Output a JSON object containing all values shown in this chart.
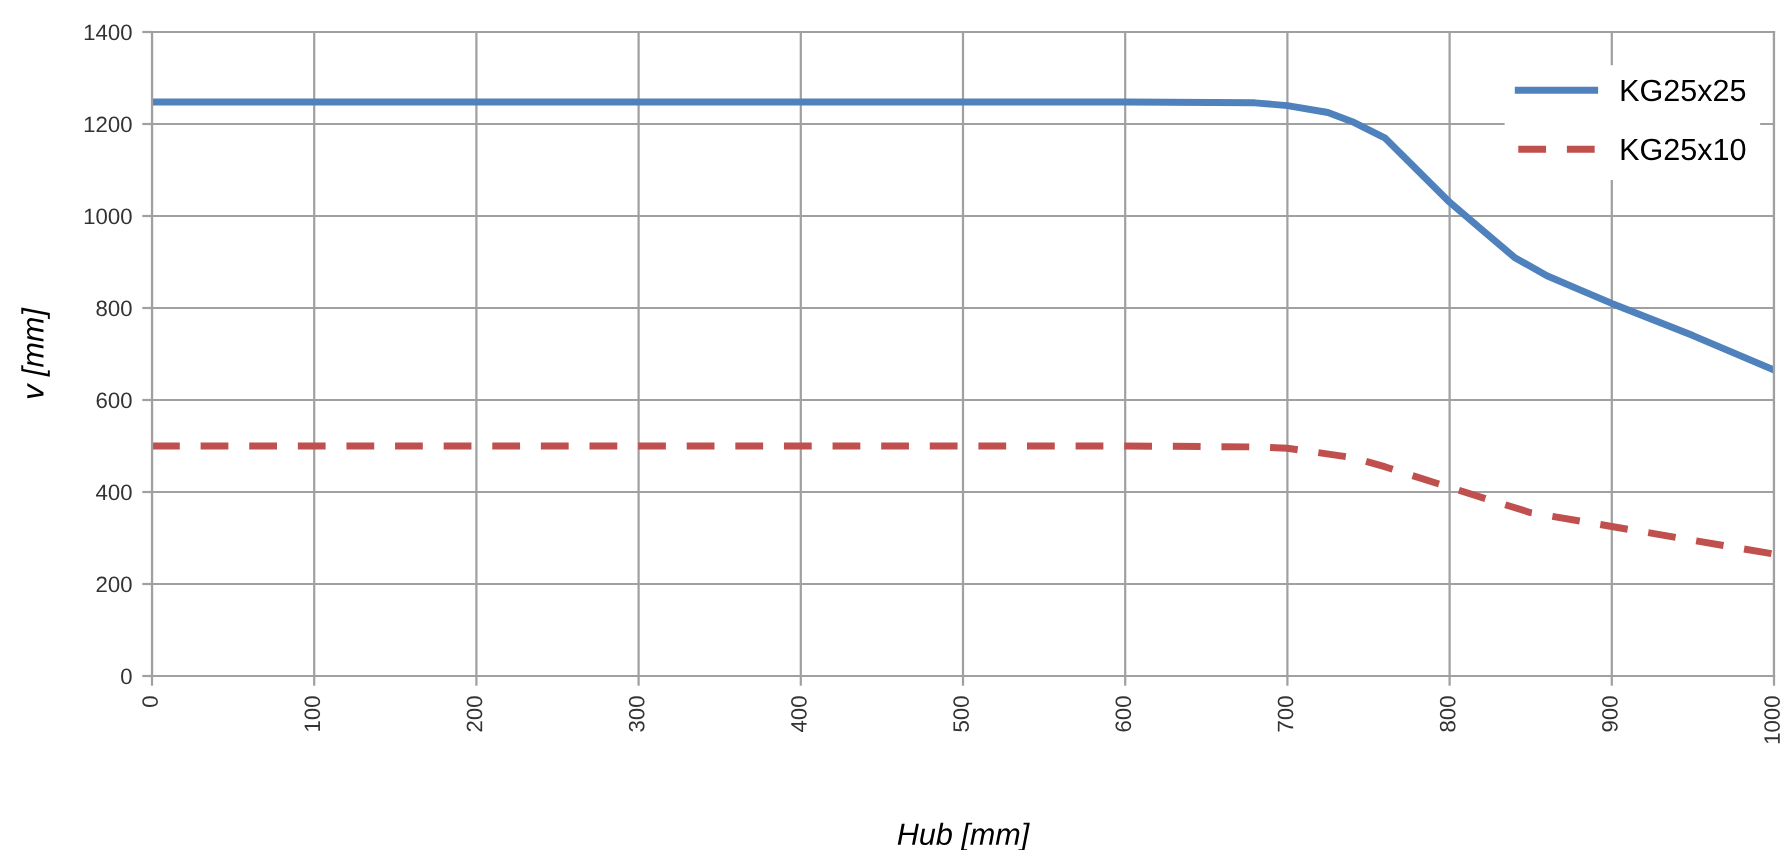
{
  "chart_data": {
    "type": "line",
    "xlabel": "Hub [mm]",
    "ylabel": "v [mm]",
    "xlim": [
      0,
      1000
    ],
    "xticks": [
      0,
      100,
      200,
      300,
      400,
      500,
      600,
      700,
      800,
      900,
      1000
    ],
    "ylim": [
      0,
      1400
    ],
    "yticks": [
      0,
      200,
      400,
      600,
      800,
      1000,
      1200,
      1400
    ],
    "grid": true,
    "legend": "top right",
    "series": [
      {
        "name": "KG25x25",
        "color": "#4f81bd",
        "line_style": "solid",
        "x": [
          0,
          100,
          200,
          300,
          400,
          500,
          600,
          680,
          700,
          725,
          740,
          760,
          780,
          800,
          820,
          840,
          860,
          880,
          900,
          950,
          1000
        ],
        "values": [
          1248,
          1248,
          1248,
          1248,
          1248,
          1248,
          1248,
          1246,
          1240,
          1225,
          1205,
          1170,
          1100,
          1030,
          970,
          910,
          870,
          840,
          810,
          740,
          665
        ]
      },
      {
        "name": "KG25x10",
        "color": "#c0504d",
        "line_style": "dashed",
        "x": [
          0,
          100,
          200,
          300,
          400,
          500,
          600,
          680,
          700,
          740,
          760,
          800,
          850,
          900,
          950,
          1000
        ],
        "values": [
          500,
          500,
          500,
          500,
          500,
          500,
          500,
          498,
          495,
          475,
          455,
          410,
          355,
          325,
          295,
          265
        ]
      }
    ]
  }
}
